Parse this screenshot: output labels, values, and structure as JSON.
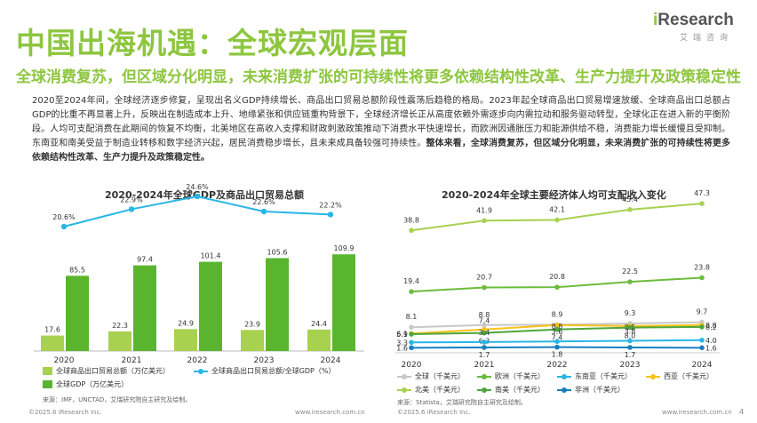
{
  "header": {
    "title": "中国出海机遇：全球宏观层面",
    "logo_prefix": "i",
    "logo_rest": "Research",
    "logo_sub": "艾瑞咨询",
    "subtitle": "全球消费复苏，但区域分化明显，未来消费扩张的可持续性将更多依赖结构性改革、生产力提升及政策稳定性"
  },
  "paragraph": {
    "p1": "2020至2024年间，全球经济逐步修复，呈现出名义GDP持续增长、商品出口贸易总额阶段性震荡后趋稳的格局。2023年起全球商品出口贸易增速放缓、全球商品出口总额占GDP的比重不再显著上升，反映出在制造成本上升、地缘紧张和供应链重构背景下，全球经济增长正从高度依赖外需逐步向内需拉动和服务驱动转型，全球化正在进入新的平衡阶段。",
    "p2": "人均可支配消费在此期间的恢复不均衡，北美地区在高收入支撑和财政刺激政策推动下消费水平快速增长，而欧洲因通胀压力和能源供给不稳，消费能力增长缓慢且受抑制。东南亚和南美受益于制造业转移和数字经济兴起，居民消费稳步增长，且未来成具备较强可持续性。",
    "p3": "整体来看，全球消费复苏，但区域分化明显，未来消费扩张的可持续性将更多依赖结构性改革、生产力提升及政策稳定性。"
  },
  "legend_left": {
    "export": "全球商品出口贸易总额（万亿美元）",
    "ratio": "全球商品出口贸易总额/全球GDP（%）",
    "gdp": "全球GDP（万亿美元）"
  },
  "legend_right": {
    "global": "全球（千美元）",
    "europe": "欧洲（千美元）",
    "sea": "东南亚（千美元）",
    "westasia": "西亚（千美元）",
    "na": "北美（千美元）",
    "sa": "南美（千美元）",
    "africa": "非洲（千美元）"
  },
  "source_left": "来源：IMF，UNCTAD，艾瑞研究院自主研究及绘制。",
  "source_right": "来源：Statista，艾瑞研究院自主研究及绘制。",
  "footer": {
    "copyright_left": "©2025.6 iResearch Inc.",
    "url_left": "www.iresearch.com.cn",
    "copyright_right": "©2025.6 iResearch Inc.",
    "url_right": "www.iresearch.com.cn",
    "page": "4"
  },
  "colors": {
    "green_dark": "#5ab52e",
    "green_light": "#a8d14f",
    "cyan": "#29b6e6",
    "accent": "#8dc63f"
  },
  "chart_data": [
    {
      "type": "bar",
      "title": "2020-2024年全球GDP及商品出口贸易总额",
      "categories": [
        "2020",
        "2021",
        "2022",
        "2023",
        "2024"
      ],
      "series": [
        {
          "name": "全球商品出口贸易总额（万亿美元）",
          "values": [
            17.6,
            22.3,
            24.9,
            23.9,
            24.4
          ],
          "color": "#a8d14f"
        },
        {
          "name": "全球GDP（万亿美元）",
          "values": [
            85.5,
            97.4,
            101.4,
            105.6,
            109.9
          ],
          "color": "#5ab52e"
        }
      ],
      "line_series": {
        "name": "全球商品出口贸易总额/全球GDP（%）",
        "values": [
          20.6,
          22.9,
          24.6,
          22.6,
          22.2
        ],
        "labels": [
          "20.6%",
          "22.9%",
          "24.6%",
          "22.6%",
          "22.2%"
        ],
        "color": "#29b6e6"
      }
    },
    {
      "type": "line",
      "title": "2020-2024年全球主要经济体人均可支配收入变化",
      "x": [
        "2020",
        "2021",
        "2022",
        "2023",
        "2024"
      ],
      "series": [
        {
          "name": "北美（千美元）",
          "values": [
            38.8,
            41.9,
            42.1,
            45.4,
            47.3
          ],
          "color": "#a8d14f"
        },
        {
          "name": "欧洲（千美元）",
          "values": [
            19.4,
            20.7,
            20.8,
            22.5,
            23.8
          ],
          "color": "#6dbb3c"
        },
        {
          "name": "全球（千美元）",
          "values": [
            8.1,
            8.8,
            8.9,
            9.3,
            9.7
          ],
          "color": "#c8c8c8"
        },
        {
          "name": "西亚（千美元）",
          "values": [
            6.1,
            7.4,
            8.8,
            8.5,
            8.8
          ],
          "color": "#f7c21c"
        },
        {
          "name": "南美（千美元）",
          "values": [
            5.9,
            6.3,
            7.4,
            8.0,
            8.2
          ],
          "color": "#4ea63a"
        },
        {
          "name": "东南亚（千美元）",
          "values": [
            3.3,
            3.4,
            3.6,
            3.8,
            4.0
          ],
          "color": "#29b6e6"
        },
        {
          "name": "非洲（千美元）",
          "values": [
            1.6,
            1.7,
            1.8,
            1.7,
            1.6
          ],
          "color": "#1a7fc0"
        }
      ],
      "labels": {
        "北美（千美元）": [
          "38.8",
          "41.9",
          "42.1",
          "45.4",
          "47.3"
        ],
        "欧洲（千美元）": [
          "19.4",
          "20.7",
          "20.8",
          "22.5",
          "23.8"
        ],
        "全球（千美元）": [
          "8.1",
          "8.8",
          "8.9",
          "9.3",
          "9.7"
        ],
        "西亚（千美元）": [
          "6.1",
          "7.4",
          "8.8",
          "8.5",
          "8.8"
        ],
        "南美（千美元）": [
          "5.9",
          "6.3",
          "7.4",
          "8.0",
          "8.2"
        ],
        "东南亚（千美元）": [
          "3.3",
          "3.4",
          "3.6",
          "3.8",
          "4.0"
        ],
        "非洲（千美元）": [
          "1.6",
          "1.7",
          "1.8",
          "1.7",
          "1.6"
        ]
      }
    }
  ]
}
